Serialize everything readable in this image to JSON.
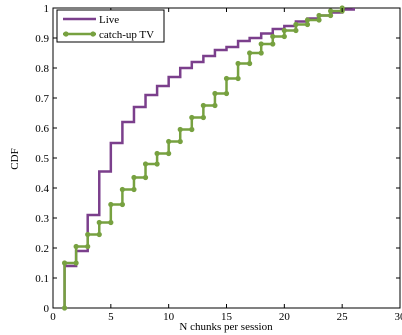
{
  "chart_data": {
    "type": "line",
    "xlabel": "N chunks per session",
    "ylabel": "CDF",
    "xlim": [
      0,
      30
    ],
    "ylim": [
      0,
      1
    ],
    "x_ticks": [
      "0",
      "5",
      "10",
      "15",
      "20",
      "25",
      "30"
    ],
    "y_ticks": [
      "0",
      "0.1",
      "0.2",
      "0.3",
      "0.4",
      "0.5",
      "0.6",
      "0.7",
      "0.8",
      "0.9",
      "1"
    ],
    "grid": false,
    "legend_position": "top-left",
    "series": [
      {
        "name": "Live",
        "color": "#7B3F8C",
        "step": true,
        "markers": false,
        "points": [
          [
            1,
            0
          ],
          [
            1,
            0.14
          ],
          [
            2,
            0.14
          ],
          [
            2,
            0.19
          ],
          [
            3,
            0.19
          ],
          [
            3,
            0.31
          ],
          [
            4,
            0.31
          ],
          [
            4,
            0.455
          ],
          [
            5,
            0.455
          ],
          [
            5,
            0.55
          ],
          [
            6,
            0.55
          ],
          [
            6,
            0.62
          ],
          [
            7,
            0.62
          ],
          [
            7,
            0.67
          ],
          [
            8,
            0.67
          ],
          [
            8,
            0.71
          ],
          [
            9,
            0.71
          ],
          [
            9,
            0.74
          ],
          [
            10,
            0.74
          ],
          [
            10,
            0.77
          ],
          [
            11,
            0.77
          ],
          [
            11,
            0.8
          ],
          [
            12,
            0.8
          ],
          [
            12,
            0.82
          ],
          [
            13,
            0.82
          ],
          [
            13,
            0.84
          ],
          [
            14,
            0.84
          ],
          [
            14,
            0.86
          ],
          [
            15,
            0.86
          ],
          [
            15,
            0.87
          ],
          [
            16,
            0.87
          ],
          [
            16,
            0.89
          ],
          [
            17,
            0.89
          ],
          [
            17,
            0.9
          ],
          [
            18,
            0.9
          ],
          [
            18,
            0.915
          ],
          [
            19,
            0.915
          ],
          [
            19,
            0.93
          ],
          [
            20,
            0.93
          ],
          [
            20,
            0.94
          ],
          [
            21,
            0.94
          ],
          [
            21,
            0.955
          ],
          [
            22,
            0.955
          ],
          [
            22,
            0.965
          ],
          [
            23,
            0.965
          ],
          [
            23,
            0.975
          ],
          [
            24,
            0.975
          ],
          [
            24,
            0.985
          ],
          [
            25,
            0.985
          ],
          [
            25,
            0.995
          ],
          [
            26,
            0.995
          ],
          [
            26,
            1.0
          ]
        ]
      },
      {
        "name": "catch-up TV",
        "color": "#77A140",
        "step": true,
        "markers": true,
        "points": [
          [
            1,
            0
          ],
          [
            1,
            0.15
          ],
          [
            2,
            0.15
          ],
          [
            2,
            0.205
          ],
          [
            3,
            0.205
          ],
          [
            3,
            0.245
          ],
          [
            4,
            0.245
          ],
          [
            4,
            0.285
          ],
          [
            5,
            0.285
          ],
          [
            5,
            0.345
          ],
          [
            6,
            0.345
          ],
          [
            6,
            0.395
          ],
          [
            7,
            0.395
          ],
          [
            7,
            0.435
          ],
          [
            8,
            0.435
          ],
          [
            8,
            0.48
          ],
          [
            9,
            0.48
          ],
          [
            9,
            0.515
          ],
          [
            10,
            0.515
          ],
          [
            10,
            0.555
          ],
          [
            11,
            0.555
          ],
          [
            11,
            0.595
          ],
          [
            12,
            0.595
          ],
          [
            12,
            0.635
          ],
          [
            13,
            0.635
          ],
          [
            13,
            0.675
          ],
          [
            14,
            0.675
          ],
          [
            14,
            0.715
          ],
          [
            15,
            0.715
          ],
          [
            15,
            0.765
          ],
          [
            16,
            0.765
          ],
          [
            16,
            0.815
          ],
          [
            17,
            0.815
          ],
          [
            17,
            0.85
          ],
          [
            18,
            0.85
          ],
          [
            18,
            0.88
          ],
          [
            19,
            0.88
          ],
          [
            19,
            0.905
          ],
          [
            20,
            0.905
          ],
          [
            20,
            0.925
          ],
          [
            21,
            0.925
          ],
          [
            21,
            0.945
          ],
          [
            22,
            0.945
          ],
          [
            22,
            0.96
          ],
          [
            23,
            0.96
          ],
          [
            23,
            0.975
          ],
          [
            24,
            0.975
          ],
          [
            24,
            0.99
          ],
          [
            25,
            0.99
          ],
          [
            25,
            1.0
          ]
        ]
      }
    ]
  }
}
